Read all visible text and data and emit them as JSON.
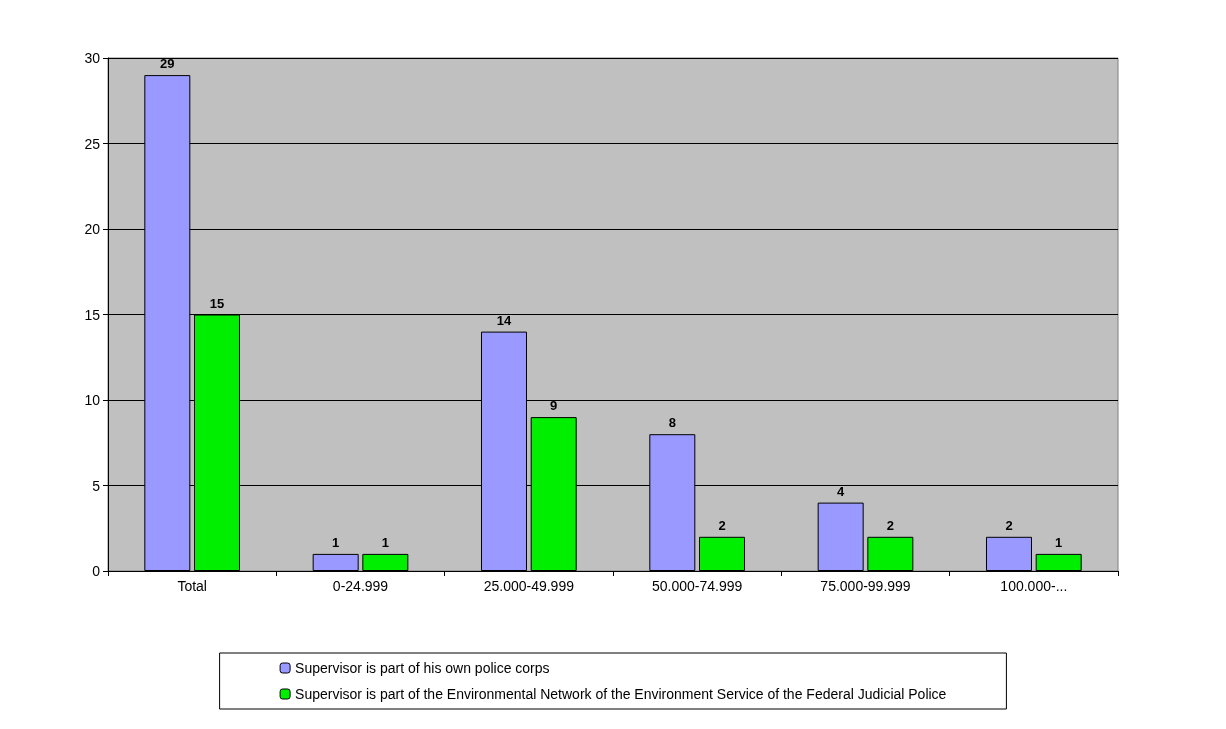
{
  "chart_data": {
    "type": "bar",
    "categories": [
      "Total",
      "0-24.999",
      "25.000-49.999",
      "50.000-74.999",
      "75.000-99.999",
      "100.000-..."
    ],
    "series": [
      {
        "name": "Supervisor is part of his own police corps",
        "color": "#9999ff",
        "values": [
          29,
          1,
          14,
          8,
          4,
          2
        ]
      },
      {
        "name": "Supervisor is part of the Environmental Network of the Environment Service of the Federal Judicial Police",
        "color": "#00ee00",
        "values": [
          15,
          1,
          9,
          2,
          2,
          1
        ]
      }
    ],
    "ylim": [
      0,
      30
    ],
    "yticks": [
      0,
      5,
      10,
      15,
      20,
      25,
      30
    ],
    "grid": "y",
    "legend": "bottom",
    "data_labels": true
  }
}
